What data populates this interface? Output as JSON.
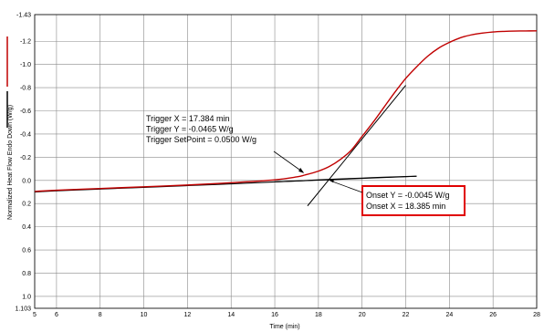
{
  "chart_data": {
    "type": "line",
    "xlabel": "Time (min)",
    "ylabel": "Normalized Heat Flow Endo Down (W/g)",
    "xlim": [
      5,
      28
    ],
    "ylim": [
      1.103,
      -1.43
    ],
    "x_ticks": [
      5,
      6,
      8,
      10,
      12,
      14,
      16,
      18,
      20,
      22,
      24,
      26,
      28
    ],
    "x_tick_labels": [
      "5",
      "6",
      "8",
      "10",
      "12",
      "14",
      "16",
      "18",
      "20",
      "22",
      "24",
      "26",
      "28"
    ],
    "y_tick_values": [
      -1.43,
      -1.2,
      -1.0,
      -0.8,
      -0.6,
      -0.4,
      -0.2,
      0.0,
      0.2,
      0.4,
      0.6,
      0.8,
      1.0,
      1.103
    ],
    "y_tick_labels": [
      "-1.43",
      "-1.2",
      "-1.0",
      "-0.8",
      "-0.6",
      "-0.4",
      "-0.2",
      "0.0",
      "0.2",
      "0.4",
      "0.6",
      "0.8",
      "1.0",
      "1.103"
    ],
    "grid": true,
    "series": [
      {
        "color": "#c00000",
        "x": [
          5,
          6,
          8,
          10,
          12,
          14,
          16,
          17,
          17.384,
          18,
          18.5,
          19,
          19.5,
          20,
          20.5,
          21,
          21.5,
          22,
          22.5,
          23,
          23.5,
          24,
          24.5,
          25,
          25.5,
          26,
          26.5,
          27,
          27.5,
          28
        ],
        "y": [
          0.095,
          0.085,
          0.07,
          0.055,
          0.04,
          0.02,
          -0.005,
          -0.03,
          -0.0465,
          -0.08,
          -0.12,
          -0.18,
          -0.26,
          -0.38,
          -0.5,
          -0.63,
          -0.76,
          -0.88,
          -0.98,
          -1.07,
          -1.14,
          -1.19,
          -1.23,
          -1.255,
          -1.27,
          -1.28,
          -1.285,
          -1.288,
          -1.289,
          -1.29
        ]
      },
      {
        "color": "#000000",
        "x": [
          5,
          6,
          8,
          10,
          12,
          14,
          16,
          17,
          18,
          19,
          20,
          21,
          22,
          22.5
        ],
        "y": [
          0.1,
          0.09,
          0.075,
          0.06,
          0.045,
          0.03,
          0.013,
          0.005,
          -0.005,
          -0.013,
          -0.02,
          -0.027,
          -0.033,
          -0.036
        ]
      }
    ],
    "tangent_lines": [
      {
        "x": [
          17.5,
          22
        ],
        "y": [
          0.22,
          -0.82
        ]
      },
      {
        "x": [
          16,
          22.5
        ],
        "y": [
          0.013,
          -0.036
        ]
      }
    ],
    "annotations": [
      {
        "lines": [
          "Trigger X = 17.384 min",
          "Trigger Y = -0.0465 W/g",
          "Trigger SetPoint = 0.0500 W/g"
        ],
        "target_x": 17.384,
        "target_y": -0.0465
      }
    ],
    "onset_box": {
      "lines": [
        "Onset Y = -0.0045 W/g",
        "Onset X = 18.385 min"
      ],
      "target_x": 18.385,
      "target_y": -0.0045,
      "border_color": "#e00000"
    }
  }
}
